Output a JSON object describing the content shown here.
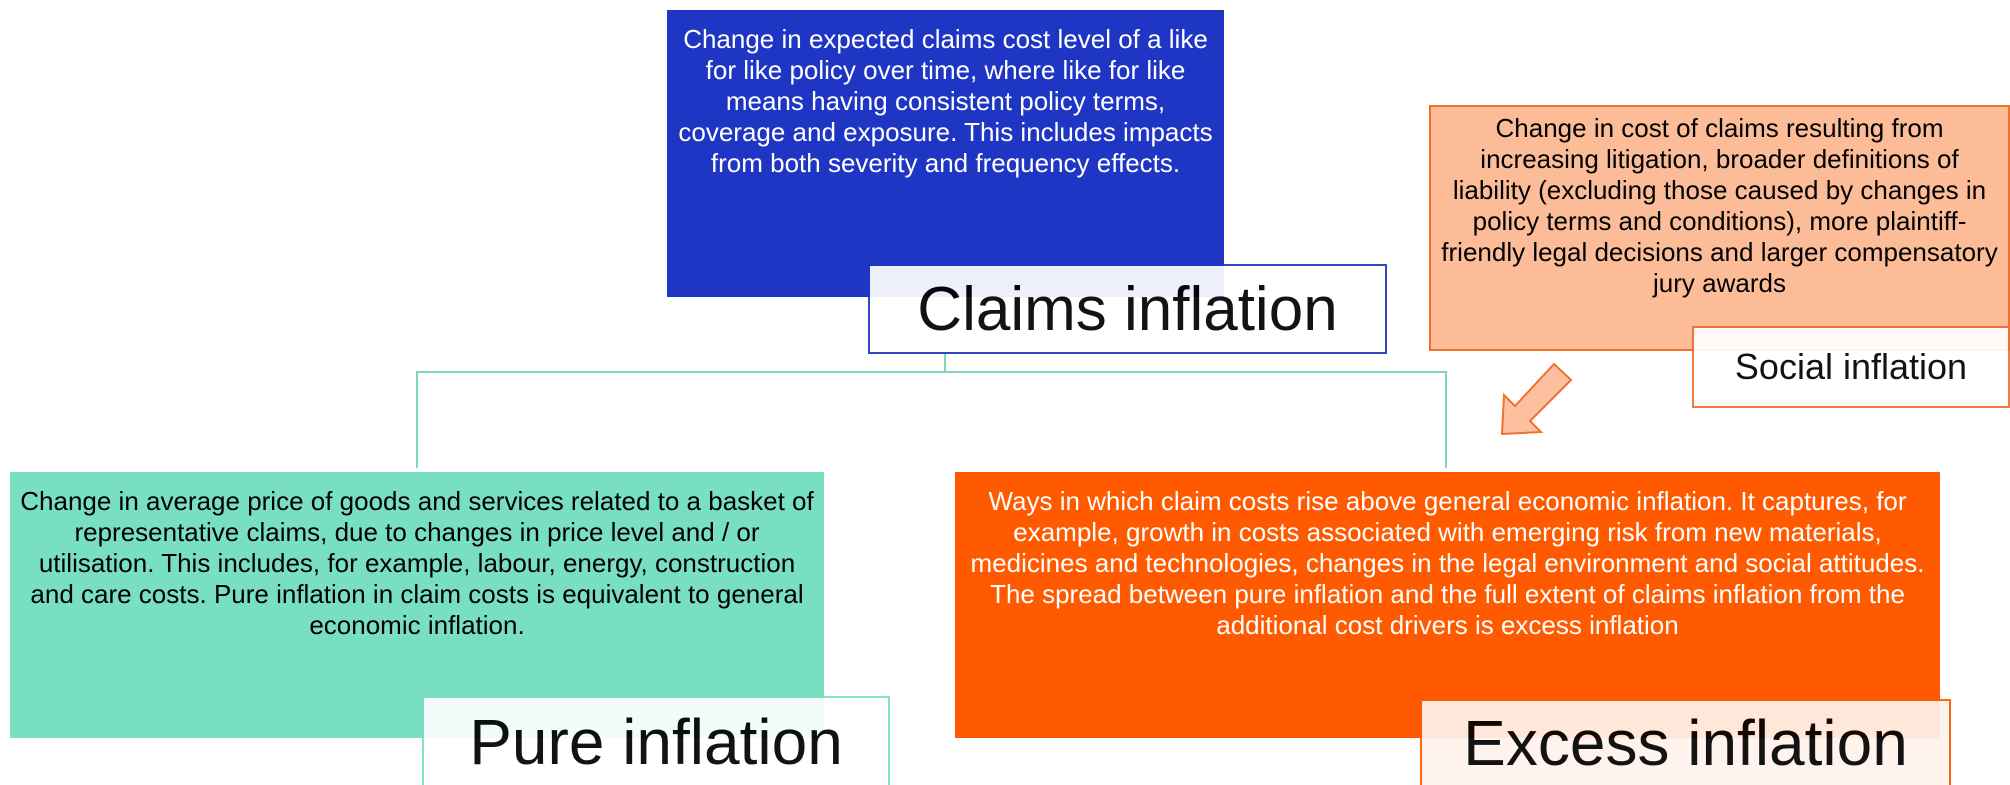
{
  "nodes": [
    {
      "label": "Claims inflation",
      "description": "Change in expected claims cost level of a like for like policy over time, where like for like means having consistent policy terms, coverage and exposure. This includes impacts from both severity and frequency effects."
    },
    {
      "label": "Social inflation",
      "description": "Change in cost of claims resulting from increasing litigation, broader definitions of liability (excluding those caused by changes in policy terms and conditions), more plaintiff-friendly legal decisions and larger compensatory jury awards"
    },
    {
      "label": "Pure inflation",
      "description": "Change in average price of goods and services related to a basket of representative claims, due to changes in price level and / or utilisation. This includes, for example, labour, energy, construction and care costs. Pure inflation in claim costs is equivalent to general economic inflation."
    },
    {
      "label": "Excess inflation",
      "description": "Ways in which claim costs rise above general economic inflation. It captures, for example, growth in costs associated with emerging risk from new materials, medicines and technologies, changes in the legal environment and social attitudes. The spread between pure inflation and the full extent of claims inflation from the additional cost drivers is excess inflation"
    }
  ]
}
